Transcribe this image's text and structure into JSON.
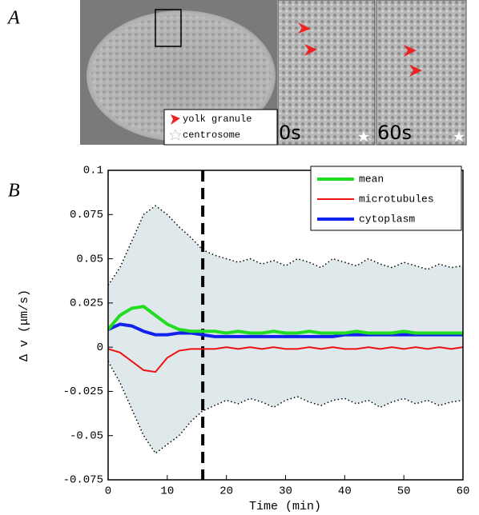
{
  "panel_a": {
    "label": "A",
    "legend": [
      "yolk granule",
      "centrosome"
    ],
    "time_labels": [
      "0s",
      "60s"
    ]
  },
  "chart_data": {
    "type": "line",
    "panel_label": "B",
    "xlabel": "Time (min)",
    "ylabel": "Δ v (μm/s)",
    "x": [
      0,
      2,
      4,
      6,
      8,
      10,
      12,
      14,
      16,
      18,
      20,
      22,
      24,
      26,
      28,
      30,
      32,
      34,
      36,
      38,
      40,
      42,
      44,
      46,
      48,
      50,
      52,
      54,
      56,
      58,
      60
    ],
    "series": [
      {
        "name": "mean",
        "color": "#22dd22",
        "values": [
          0.01,
          0.018,
          0.022,
          0.023,
          0.018,
          0.013,
          0.01,
          0.009,
          0.009,
          0.009,
          0.008,
          0.009,
          0.008,
          0.008,
          0.009,
          0.008,
          0.008,
          0.009,
          0.008,
          0.008,
          0.008,
          0.009,
          0.008,
          0.008,
          0.008,
          0.009,
          0.008,
          0.008,
          0.008,
          0.008,
          0.008
        ]
      },
      {
        "name": "microtubules",
        "color": "#ee1111",
        "values": [
          -0.001,
          -0.003,
          -0.008,
          -0.013,
          -0.014,
          -0.006,
          -0.002,
          -0.001,
          -0.001,
          -0.001,
          0.0,
          -0.001,
          0.0,
          -0.001,
          0.0,
          -0.001,
          -0.001,
          0.0,
          -0.001,
          0.0,
          -0.001,
          -0.001,
          0.0,
          -0.001,
          0.0,
          -0.001,
          0.0,
          -0.001,
          0.0,
          -0.001,
          0.0
        ]
      },
      {
        "name": "cytoplasm",
        "color": "#1122ee",
        "values": [
          0.01,
          0.013,
          0.012,
          0.009,
          0.007,
          0.007,
          0.008,
          0.008,
          0.007,
          0.006,
          0.006,
          0.006,
          0.006,
          0.006,
          0.006,
          0.006,
          0.006,
          0.006,
          0.006,
          0.006,
          0.007,
          0.007,
          0.007,
          0.007,
          0.007,
          0.007,
          0.007,
          0.007,
          0.007,
          0.007,
          0.007
        ]
      }
    ],
    "envelope": {
      "upper": [
        0.035,
        0.045,
        0.06,
        0.075,
        0.08,
        0.075,
        0.068,
        0.062,
        0.055,
        0.052,
        0.05,
        0.048,
        0.05,
        0.047,
        0.049,
        0.046,
        0.05,
        0.048,
        0.045,
        0.05,
        0.048,
        0.046,
        0.05,
        0.047,
        0.045,
        0.048,
        0.046,
        0.044,
        0.047,
        0.045,
        0.046
      ],
      "lower": [
        -0.008,
        -0.02,
        -0.035,
        -0.05,
        -0.06,
        -0.055,
        -0.05,
        -0.042,
        -0.036,
        -0.033,
        -0.03,
        -0.032,
        -0.029,
        -0.031,
        -0.034,
        -0.03,
        -0.028,
        -0.031,
        -0.033,
        -0.03,
        -0.029,
        -0.032,
        -0.03,
        -0.034,
        -0.031,
        -0.029,
        -0.032,
        -0.03,
        -0.033,
        -0.031,
        -0.03
      ]
    },
    "vline": 16,
    "xlim": [
      0,
      60
    ],
    "xticks": [
      0,
      10,
      20,
      30,
      40,
      50,
      60
    ],
    "ylim": [
      -0.075,
      0.1
    ],
    "yticks": [
      -0.075,
      -0.05,
      -0.025,
      0,
      0.025,
      0.05,
      0.075,
      0.1
    ]
  }
}
